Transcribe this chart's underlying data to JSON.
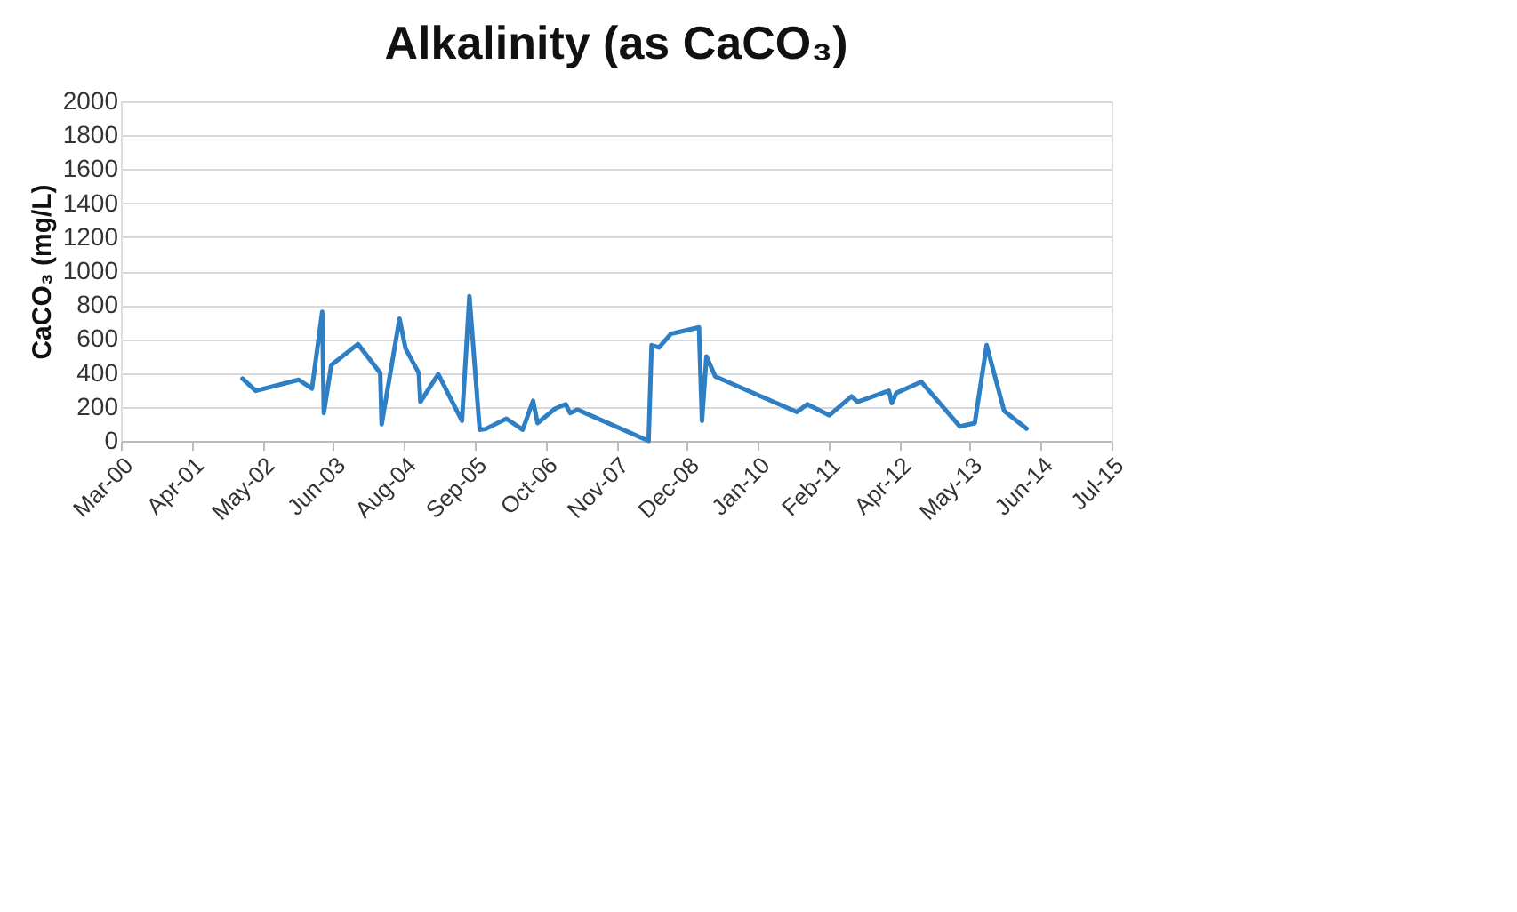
{
  "chart_data": {
    "type": "line",
    "title": "Alkalinity (as CaCO₃)",
    "ylabel": "CaCO₃ (mg/L)",
    "x": [
      "2002-02-01",
      "2002-04-17",
      "2002-12-16",
      "2003-03-01",
      "2003-04-28",
      "2003-05-07",
      "2003-06-18",
      "2003-11-16",
      "2004-03-21",
      "2004-03-29",
      "2004-07-08",
      "2004-08-11",
      "2004-10-25",
      "2004-11-03",
      "2005-02-12",
      "2005-06-26",
      "2005-08-07",
      "2005-10-04",
      "2005-11-06",
      "2006-03-04",
      "2006-06-04",
      "2006-08-02",
      "2006-08-27",
      "2006-12-04",
      "2007-02-02",
      "2007-02-27",
      "2007-04-10",
      "2008-05-16",
      "2008-06-02",
      "2008-07-14",
      "2008-09-19",
      "2009-02-25",
      "2009-03-14",
      "2009-04-08",
      "2009-05-28",
      "2010-09-01",
      "2010-10-30",
      "2011-03-04",
      "2011-07-07",
      "2011-08-10",
      "2012-02-03",
      "2012-02-20",
      "2012-03-16",
      "2012-08-05",
      "2013-03-11",
      "2013-06-03",
      "2013-08-09",
      "2013-11-16",
      "2014-03-23"
    ],
    "series": [
      {
        "color": "#2e7fc4",
        "values": [
          367,
          295,
          360,
          308,
          760,
          164,
          446,
          570,
          400,
          98,
          720,
          544,
          400,
          230,
          393,
          118,
          852,
          66,
          70,
          131,
          66,
          236,
          105,
          190,
          216,
          164,
          184,
          0,
          564,
          550,
          630,
          669,
          118,
          498,
          380,
          170,
          216,
          151,
          262,
          230,
          295,
          223,
          282,
          348,
          85,
          105,
          564,
          177,
          72
        ]
      }
    ],
    "xlim": [
      "2000-03-16",
      "2015-07-16"
    ],
    "xticks": [
      {
        "value": "2000-03-16",
        "label": "Mar-00"
      },
      {
        "value": "2001-04-20",
        "label": "Apr-01"
      },
      {
        "value": "2002-05-25",
        "label": "May-02"
      },
      {
        "value": "2003-06-29",
        "label": "Jun-03"
      },
      {
        "value": "2004-08-02",
        "label": "Aug-04"
      },
      {
        "value": "2005-09-06",
        "label": "Sep-05"
      },
      {
        "value": "2006-10-11",
        "label": "Oct-06"
      },
      {
        "value": "2007-11-15",
        "label": "Nov-07"
      },
      {
        "value": "2008-12-19",
        "label": "Dec-08"
      },
      {
        "value": "2010-01-23",
        "label": "Jan-10"
      },
      {
        "value": "2011-02-27",
        "label": "Feb-11"
      },
      {
        "value": "2012-04-02",
        "label": "Apr-12"
      },
      {
        "value": "2013-05-07",
        "label": "May-13"
      },
      {
        "value": "2014-06-11",
        "label": "Jun-14"
      },
      {
        "value": "2015-07-16",
        "label": "Jul-15"
      }
    ],
    "ylim": [
      0,
      2000
    ],
    "yticks": [
      0,
      200,
      400,
      600,
      800,
      1000,
      1200,
      1400,
      1600,
      1800,
      2000
    ],
    "grid": "y",
    "marker": "none",
    "line_style": "solid"
  }
}
